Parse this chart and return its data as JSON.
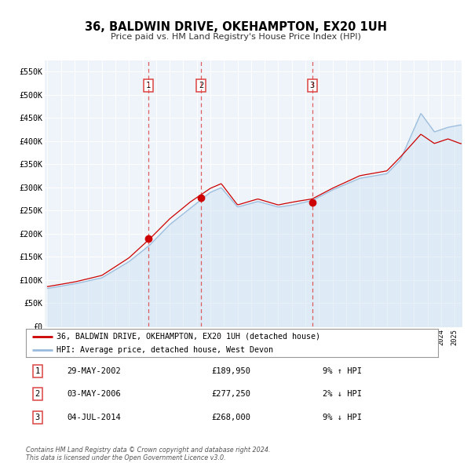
{
  "title": "36, BALDWIN DRIVE, OKEHAMPTON, EX20 1UH",
  "subtitle": "Price paid vs. HM Land Registry's House Price Index (HPI)",
  "legend_line1": "36, BALDWIN DRIVE, OKEHAMPTON, EX20 1UH (detached house)",
  "legend_line2": "HPI: Average price, detached house, West Devon",
  "red_line_color": "#cc0000",
  "blue_line_color": "#99bbdd",
  "blue_fill_color": "#cce0f0",
  "transaction_color": "#cc0000",
  "vline_color": "#dd4444",
  "chart_bg_color": "#eef4fa",
  "transactions": [
    {
      "id": 1,
      "date_num": 2002.41,
      "price": 189950,
      "label": "29-MAY-2002",
      "amount": "£189,950",
      "hpi": "9% ↑ HPI"
    },
    {
      "id": 2,
      "date_num": 2006.33,
      "price": 277250,
      "label": "03-MAY-2006",
      "amount": "£277,250",
      "hpi": "2% ↓ HPI"
    },
    {
      "id": 3,
      "date_num": 2014.5,
      "price": 268000,
      "label": "04-JUL-2014",
      "amount": "£268,000",
      "hpi": "9% ↓ HPI"
    }
  ],
  "ylabel_ticks": [
    0,
    50000,
    100000,
    150000,
    200000,
    250000,
    300000,
    350000,
    400000,
    450000,
    500000,
    550000
  ],
  "ylabel_labels": [
    "£0",
    "£50K",
    "£100K",
    "£150K",
    "£200K",
    "£250K",
    "£300K",
    "£350K",
    "£400K",
    "£450K",
    "£500K",
    "£550K"
  ],
  "xlim": [
    1994.8,
    2025.5
  ],
  "ylim": [
    0,
    575000
  ],
  "copyright": "Contains HM Land Registry data © Crown copyright and database right 2024.\nThis data is licensed under the Open Government Licence v3.0."
}
